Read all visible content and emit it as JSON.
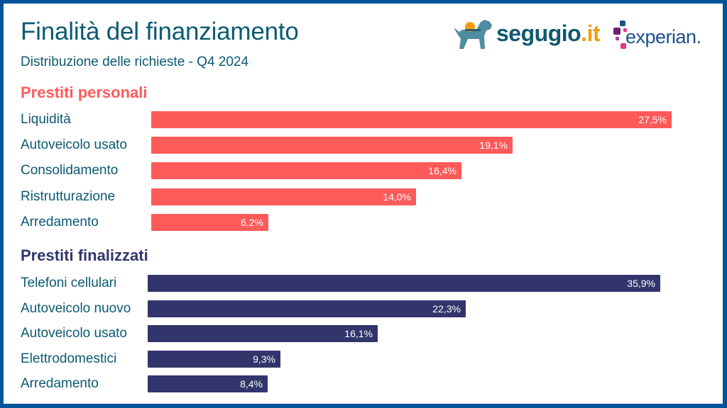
{
  "header": {
    "title": "Finalità del finanziamento",
    "subtitle": "Distribuzione delle richieste - Q4 2024"
  },
  "logos": {
    "segugio": {
      "text_main": "segugio",
      "text_accent": ".it"
    },
    "experian": {
      "text": "experian."
    }
  },
  "colors": {
    "frame": "#00549a",
    "title_text": "#0b5a72",
    "personal": "#ff5a5a",
    "finalized": "#32356b",
    "segugio_blue": "#0f5a6e",
    "segugio_orange": "#f39c12",
    "experian_purple": "#6d2077",
    "experian_blue": "#1d4f91",
    "experian_pink": "#e63888"
  },
  "chart_data": [
    {
      "type": "bar",
      "orientation": "horizontal",
      "title": "Prestiti personali",
      "categories": [
        "Liquidità",
        "Autoveicolo usato",
        "Consolidamento",
        "Ristrutturazione",
        "Arredamento"
      ],
      "values": [
        27.5,
        19.1,
        16.4,
        14.0,
        6.2
      ],
      "labels": [
        "27,5%",
        "19,1%",
        "16,4%",
        "14,0%",
        "6,2%"
      ],
      "unit": "%",
      "xlabel": "",
      "ylabel": "",
      "grid": false
    },
    {
      "type": "bar",
      "orientation": "horizontal",
      "title": "Prestiti finalizzati",
      "categories": [
        "Telefoni cellulari",
        "Autoveicolo nuovo",
        "Autoveicolo usato",
        "Elettrodomestici",
        "Arredamento"
      ],
      "values": [
        35.9,
        22.3,
        16.1,
        9.3,
        8.4
      ],
      "labels": [
        "35,9%",
        "22,3%",
        "16,1%",
        "9,3%",
        "8,4%"
      ],
      "unit": "%",
      "xlabel": "",
      "ylabel": "",
      "grid": false
    }
  ]
}
